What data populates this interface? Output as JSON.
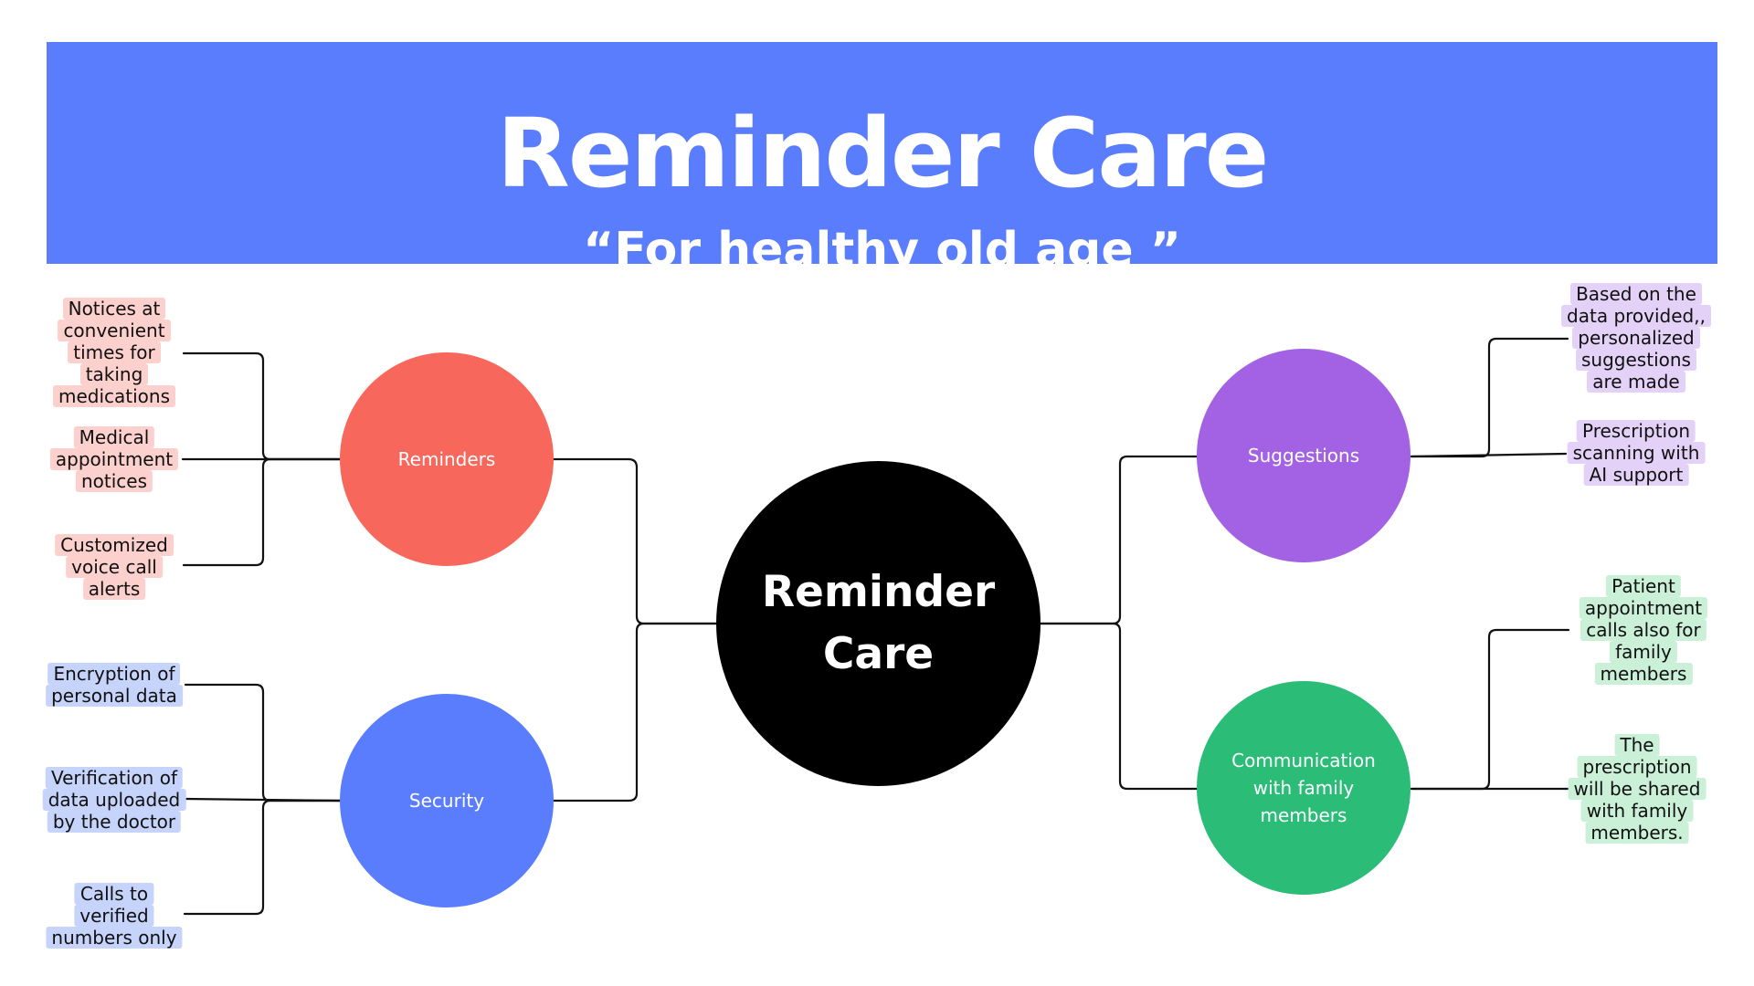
{
  "header": {
    "title": "Reminder Care",
    "subtitle": "“For healthy old age ”"
  },
  "colors": {
    "header_bg": "#5a7dfd",
    "center": "#000000",
    "reminders": "#f8675b",
    "security": "#5a7dfd",
    "suggestions": "#a262e3",
    "communication": "#2bbd77",
    "reminders_tag": "#fbd0cd",
    "security_tag": "#c6d3fb",
    "suggestions_tag": "#e4d1f7",
    "communication_tag": "#cbf0d8"
  },
  "center": {
    "label": "Reminder\nCare"
  },
  "branches": {
    "reminders": {
      "label": "Reminders",
      "items": [
        [
          "Notices at",
          "convenient",
          "times for",
          "taking",
          "medications"
        ],
        [
          "Medical",
          "appointment",
          "notices"
        ],
        [
          "Customized",
          "voice call",
          "alerts"
        ]
      ]
    },
    "security": {
      "label": "Security",
      "items": [
        [
          "Encryption of",
          "personal data"
        ],
        [
          "Verification of",
          "data uploaded",
          "by the doctor"
        ],
        [
          "Calls to",
          "verified",
          "numbers only"
        ]
      ]
    },
    "suggestions": {
      "label": "Suggestions",
      "items": [
        [
          "Based on the",
          "data provided,,",
          "personalized",
          "suggestions",
          "are made"
        ],
        [
          "Prescription",
          "scanning with",
          "AI support"
        ]
      ]
    },
    "communication": {
      "label": "Communication\nwith family\nmembers",
      "items": [
        [
          "Patient",
          "appointment",
          "calls also for",
          "family",
          "members"
        ],
        [
          "The",
          "prescription",
          "will be shared",
          "with family",
          "members."
        ]
      ]
    }
  }
}
